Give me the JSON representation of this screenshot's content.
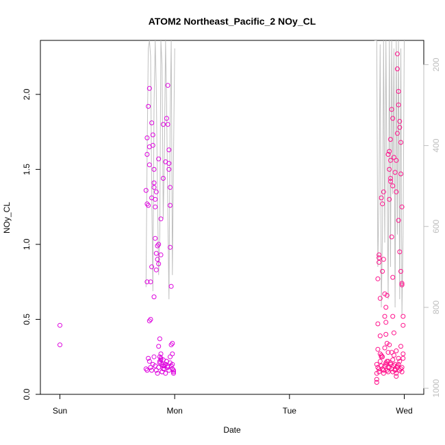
{
  "chart_data": {
    "type": "scatter",
    "title": "ATOM2 Northeast_Pacific_2 NOy_CL",
    "xlabel": "Date",
    "ylabel": "NOy_CL",
    "x_ticks": [
      {
        "value": 0,
        "label": "Sun"
      },
      {
        "value": 1,
        "label": "Mon"
      },
      {
        "value": 2,
        "label": "Tue"
      },
      {
        "value": 3,
        "label": "Wed"
      }
    ],
    "xlim": [
      -0.17,
      3.17
    ],
    "ylim": [
      0,
      2.36
    ],
    "y_ticks": [
      0.0,
      0.5,
      1.0,
      1.5,
      2.0
    ],
    "y_tick_labels": [
      "0.0",
      "0.5",
      "1.0",
      "1.5",
      "2.0"
    ],
    "y2_ticks": [
      200,
      400,
      600,
      800,
      1000
    ],
    "y2_tick_labels": [
      "200",
      "400",
      "600",
      "800",
      "1000"
    ],
    "y2lim": [
      1015,
      140
    ],
    "colors": {
      "points_day1": "#dd00dd",
      "points_day3": "#ff0e8a",
      "pressure_line": "#bfbfbf"
    },
    "series": [
      {
        "color": "#dd00dd",
        "x": [
          0.0,
          0.0,
          0.75,
          0.76,
          0.76,
          0.76,
          0.77,
          0.77,
          0.78,
          0.78,
          0.78,
          0.79,
          0.79,
          0.8,
          0.81,
          0.81,
          0.82,
          0.82,
          0.83,
          0.83,
          0.83,
          0.84,
          0.84,
          0.85,
          0.85,
          0.86,
          0.86,
          0.87,
          0.87,
          0.87,
          0.88,
          0.88,
          0.89,
          0.89,
          0.9,
          0.9,
          0.91,
          0.92,
          0.92,
          0.93,
          0.94,
          0.94,
          0.95,
          0.95,
          0.96,
          0.96,
          0.96,
          0.97,
          0.97,
          0.98,
          0.98,
          0.99,
          0.99,
          0.75,
          0.76,
          0.77,
          0.78,
          0.79,
          0.8,
          0.81,
          0.82,
          0.83,
          0.84,
          0.85,
          0.86,
          0.87,
          0.88,
          0.89,
          0.9,
          0.91,
          0.92,
          0.93,
          0.94,
          0.95,
          0.96,
          0.97,
          0.98,
          0.99,
          0.76,
          0.78,
          0.8,
          0.82,
          0.84,
          0.86,
          0.88,
          0.9,
          0.92,
          0.94,
          0.96,
          0.98,
          0.8,
          0.82,
          0.86,
          0.88,
          0.9,
          0.93,
          0.95
        ],
        "y": [
          0.46,
          0.33,
          1.36,
          1.6,
          1.71,
          1.27,
          1.92,
          1.26,
          1.65,
          1.53,
          0.49,
          0.75,
          0.5,
          1.81,
          1.73,
          1.66,
          1.41,
          1.38,
          1.3,
          1.25,
          1.04,
          0.94,
          0.83,
          0.99,
          0.9,
          0.87,
          0.32,
          0.37,
          0.25,
          0.22,
          0.24,
          0.27,
          0.2,
          0.15,
          0.19,
          0.23,
          0.17,
          0.14,
          0.2,
          0.22,
          2.06,
          1.8,
          1.63,
          1.5,
          1.38,
          1.26,
          0.98,
          0.72,
          0.33,
          0.27,
          0.2,
          0.16,
          0.14,
          0.17,
          0.16,
          0.24,
          0.22,
          0.18,
          0.16,
          0.2,
          0.25,
          0.19,
          0.16,
          0.14,
          0.18,
          0.21,
          0.23,
          0.15,
          0.17,
          0.19,
          0.2,
          0.22,
          0.18,
          0.16,
          0.21,
          0.19,
          0.17,
          0.15,
          0.75,
          2.04,
          1.31,
          1.5,
          1.35,
          1.0,
          0.93,
          1.8,
          1.55,
          0.19,
          0.25,
          0.34,
          0.85,
          0.65,
          1.57,
          1.17,
          1.44,
          1.84,
          1.54
        ]
      },
      {
        "color": "#ff0e8a",
        "x": [
          2.76,
          2.76,
          2.77,
          2.77,
          2.78,
          2.78,
          2.79,
          2.79,
          2.8,
          2.8,
          2.81,
          2.82,
          2.82,
          2.83,
          2.84,
          2.84,
          2.85,
          2.86,
          2.86,
          2.87,
          2.87,
          2.88,
          2.88,
          2.89,
          2.9,
          2.9,
          2.91,
          2.92,
          2.92,
          2.93,
          2.94,
          2.94,
          2.95,
          2.95,
          2.96,
          2.97,
          2.97,
          2.98,
          2.98,
          2.99,
          2.99,
          2.76,
          2.77,
          2.78,
          2.79,
          2.8,
          2.81,
          2.82,
          2.83,
          2.84,
          2.85,
          2.86,
          2.87,
          2.88,
          2.89,
          2.9,
          2.91,
          2.92,
          2.93,
          2.94,
          2.95,
          2.96,
          2.97,
          2.98,
          2.99,
          2.76,
          2.78,
          2.8,
          2.82,
          2.84,
          2.86,
          2.88,
          2.9,
          2.92,
          2.94,
          2.96,
          2.98,
          2.77,
          2.79,
          2.81,
          2.83,
          2.85,
          2.87,
          2.89,
          2.91,
          2.93,
          2.95,
          2.97,
          2.99,
          2.86,
          2.87,
          2.88,
          2.89,
          2.9,
          2.91,
          2.92,
          2.93,
          2.94,
          2.95,
          2.96,
          2.97
        ],
        "y": [
          0.08,
          0.1,
          0.47,
          0.77,
          0.91,
          0.88,
          0.64,
          0.39,
          0.26,
          1.31,
          1.27,
          1.35,
          0.9,
          0.67,
          0.58,
          0.4,
          0.34,
          0.28,
          0.22,
          1.3,
          1.5,
          1.56,
          1.44,
          1.05,
          0.78,
          0.52,
          0.41,
          0.2,
          0.16,
          0.12,
          2.27,
          2.17,
          2.02,
          1.93,
          1.82,
          1.68,
          1.47,
          1.25,
          0.74,
          0.52,
          0.46,
          0.2,
          0.18,
          0.15,
          0.22,
          0.25,
          0.17,
          0.14,
          0.19,
          0.21,
          0.16,
          0.15,
          0.18,
          0.2,
          0.17,
          0.23,
          0.19,
          0.16,
          0.14,
          0.18,
          0.2,
          0.22,
          0.17,
          0.15,
          0.24,
          0.14,
          0.17,
          0.19,
          0.16,
          0.2,
          0.18,
          0.21,
          0.15,
          0.17,
          0.19,
          0.16,
          0.18,
          0.3,
          0.27,
          0.25,
          0.31,
          0.22,
          0.33,
          0.28,
          0.26,
          0.29,
          0.24,
          0.32,
          0.27,
          1.6,
          1.62,
          1.7,
          1.9,
          1.84,
          1.58,
          1.48,
          1.35,
          1.74,
          1.16,
          0.95,
          0.82
        ],
        "x2": [
          2.78,
          2.81,
          2.83,
          2.85,
          2.88,
          2.9,
          2.93,
          2.96,
          2.98,
          2.84
        ],
        "y2": [
          0.93,
          0.82,
          0.52,
          0.66,
          1.42,
          1.39,
          1.56,
          1.78,
          0.73,
          0.48
        ]
      }
    ],
    "pressure_line": {
      "color": "#bfbfbf",
      "x": [
        0.75,
        0.76,
        0.77,
        0.78,
        0.79,
        0.8,
        0.81,
        0.82,
        0.83,
        0.84,
        0.85,
        0.86,
        0.87,
        0.88,
        0.89,
        0.9,
        0.91,
        0.92,
        0.93,
        0.94,
        0.95,
        0.96,
        0.97,
        0.98,
        0.99,
        1.0,
        2.74,
        2.75,
        2.76,
        2.77,
        2.78,
        2.79,
        2.8,
        2.81,
        2.82,
        2.83,
        2.84,
        2.85,
        2.86,
        2.87,
        2.88,
        2.89,
        2.9,
        2.91,
        2.92,
        2.93,
        2.94,
        2.95,
        2.96,
        2.97,
        2.98,
        2.99,
        3.0
      ],
      "y": [
        750,
        420,
        160,
        140,
        180,
        520,
        760,
        300,
        140,
        260,
        520,
        720,
        620,
        140,
        200,
        580,
        430,
        140,
        300,
        560,
        780,
        340,
        140,
        720,
        420,
        160,
        140,
        140,
        140,
        700,
        520,
        150,
        800,
        620,
        140,
        640,
        140,
        480,
        780,
        140,
        700,
        140,
        520,
        160,
        800,
        140,
        620,
        140,
        780,
        160,
        820,
        620,
        140
      ]
    }
  }
}
